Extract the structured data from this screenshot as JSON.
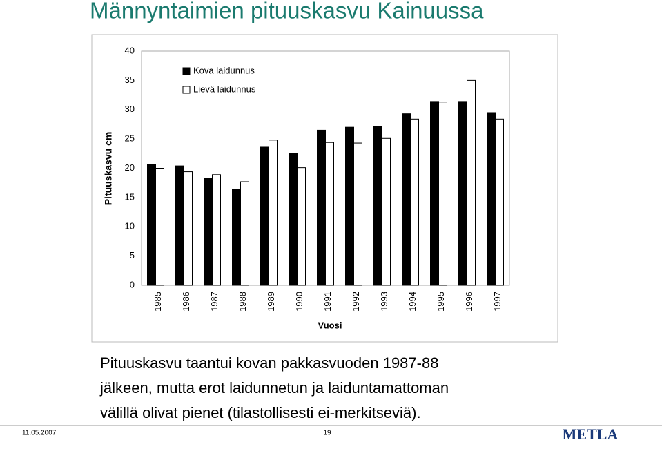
{
  "chart_data": {
    "type": "bar",
    "title": "Männyntaimien pituuskasvu Kainuussa",
    "x_label": "Vuosi",
    "y_label": "Pituuskasvu cm",
    "categories": [
      "1985",
      "1986",
      "1987",
      "1988",
      "1989",
      "1990",
      "1991",
      "1992",
      "1993",
      "1994",
      "1995",
      "1996",
      "1997"
    ],
    "series": [
      {
        "name": "Kova laidunnus",
        "color": "#000000",
        "values": [
          20.6,
          20.4,
          18.3,
          16.4,
          23.6,
          22.5,
          26.5,
          27.0,
          27.1,
          29.3,
          31.4,
          31.4,
          29.5
        ]
      },
      {
        "name": "Lievä laidunnus",
        "color": "#ffffff",
        "values": [
          20.0,
          19.4,
          18.9,
          17.7,
          24.8,
          20.1,
          24.4,
          24.3,
          25.1,
          28.4,
          31.3,
          35.0,
          28.4
        ]
      }
    ],
    "ylim": [
      0,
      40
    ],
    "yticks": [
      0,
      5,
      10,
      15,
      20,
      25,
      30,
      35,
      40
    ],
    "grid": false,
    "legend": "top-left"
  },
  "body": [
    "Pituuskasvu taantui kovan pakkasvuoden 1987-88",
    "jälkeen, mutta erot  laidunnetun ja laiduntamattoman",
    "välillä olivat pienet (tilastollisesti ei-merkitseviä)."
  ],
  "footer": {
    "date": "11.05.2007",
    "page": "19",
    "logo": "METLA"
  }
}
